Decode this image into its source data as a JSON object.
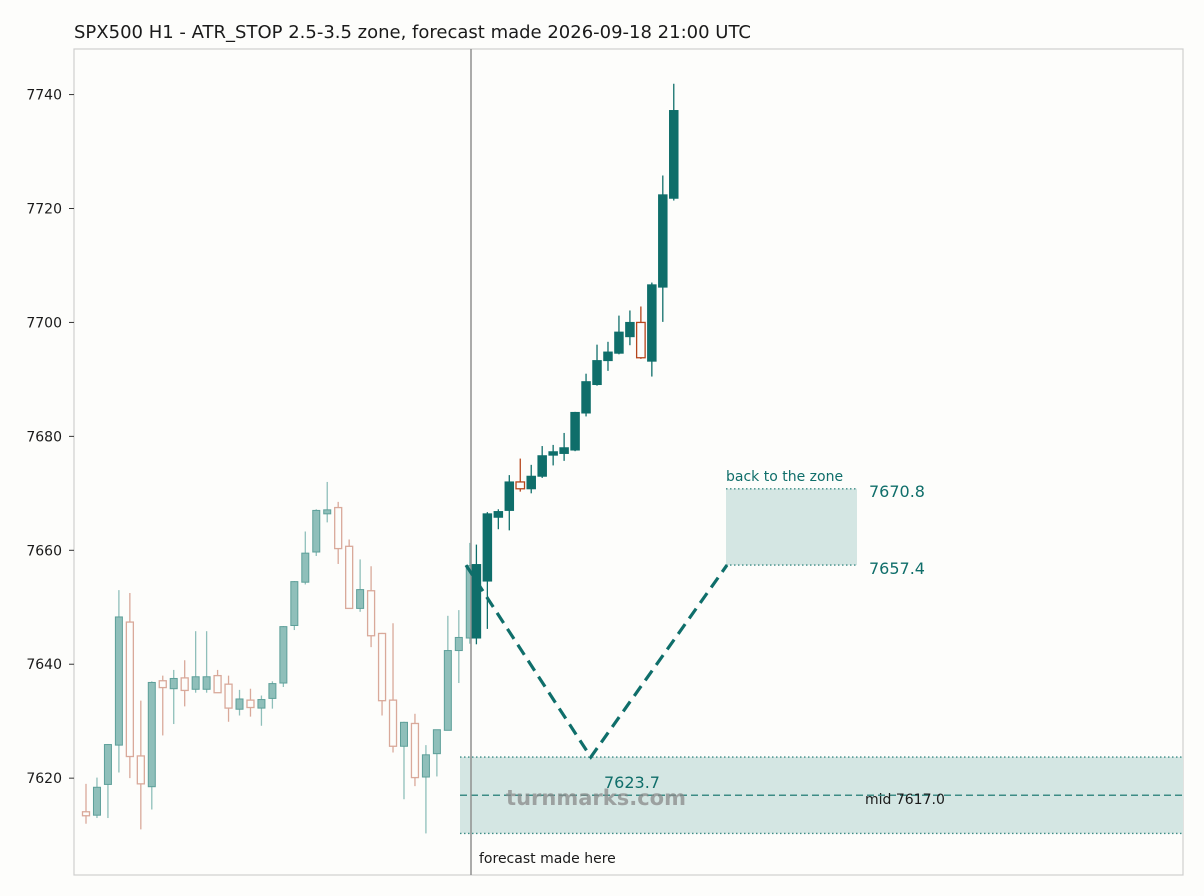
{
  "chart_data": {
    "type": "candlestick",
    "title": "SPX500 H1 - ATR_STOP 2.5-3.5 zone, forecast made 2026-09-18 21:00 UTC",
    "watermark": "turnmarks.com",
    "ylim": [
      7603.0,
      7748.0
    ],
    "yticks": [
      7620,
      7640,
      7660,
      7680,
      7700,
      7720,
      7740
    ],
    "grid": false,
    "colors": {
      "bull": "#0f6e6a",
      "bear": "#b5451b",
      "history_bull": "#8fbfba",
      "history_bear": "#d9a99a",
      "zone_fill": "#d4e6e3",
      "path": "#0f6e6a"
    },
    "history_candles": [
      [
        7614.1,
        7619.0,
        7612.0,
        7613.4
      ],
      [
        7613.5,
        7620.1,
        7613.0,
        7618.4
      ],
      [
        7618.9,
        7626.0,
        7613.0,
        7625.9
      ],
      [
        7625.8,
        7653.0,
        7621.0,
        7648.3
      ],
      [
        7647.4,
        7652.5,
        7620.0,
        7623.8
      ],
      [
        7623.9,
        7633.6,
        7611.0,
        7619.0
      ],
      [
        7618.5,
        7637.0,
        7614.5,
        7636.8
      ],
      [
        7637.1,
        7638.0,
        7627.5,
        7635.9
      ],
      [
        7635.7,
        7639.0,
        7629.5,
        7637.5
      ],
      [
        7637.6,
        7640.7,
        7632.6,
        7635.4
      ],
      [
        7635.6,
        7645.8,
        7635.0,
        7637.8
      ],
      [
        7635.6,
        7645.8,
        7635.0,
        7637.8
      ],
      [
        7638.0,
        7639.0,
        7635.0,
        7635.0
      ],
      [
        7636.5,
        7638.0,
        7629.9,
        7632.3
      ],
      [
        7632.1,
        7635.5,
        7631.0,
        7633.9
      ],
      [
        7633.7,
        7635.7,
        7630.8,
        7632.4
      ],
      [
        7632.3,
        7634.5,
        7629.2,
        7633.8
      ],
      [
        7634.0,
        7637.0,
        7632.2,
        7636.6
      ],
      [
        7636.7,
        7646.7,
        7636.0,
        7646.6
      ],
      [
        7646.8,
        7654.6,
        7646.0,
        7654.5
      ],
      [
        7654.4,
        7663.3,
        7654.0,
        7659.5
      ],
      [
        7659.7,
        7667.2,
        7659.0,
        7667.0
      ],
      [
        7666.4,
        7672.0,
        7664.9,
        7667.1
      ],
      [
        7667.5,
        7668.5,
        7657.6,
        7660.3
      ],
      [
        7660.7,
        7661.9,
        7649.8,
        7649.8
      ],
      [
        7649.8,
        7658.4,
        7649.2,
        7653.1
      ],
      [
        7652.9,
        7657.2,
        7643.0,
        7645.0
      ],
      [
        7645.4,
        7645.5,
        7631.0,
        7633.6
      ],
      [
        7633.7,
        7647.2,
        7624.5,
        7625.6
      ],
      [
        7625.6,
        7629.9,
        7616.3,
        7629.8
      ],
      [
        7629.6,
        7631.3,
        7618.6,
        7620.1
      ],
      [
        7620.2,
        7625.8,
        7610.3,
        7624.1
      ],
      [
        7624.3,
        7628.5,
        7620.3,
        7628.5
      ],
      [
        7628.4,
        7648.5,
        7628.4,
        7642.4
      ],
      [
        7642.4,
        7649.5,
        7636.7,
        7644.7
      ],
      [
        7644.6,
        7661.3,
        7643.6,
        7657.3
      ]
    ],
    "forecast_candles": [
      [
        7644.6,
        7661.0,
        7643.5,
        7657.5
      ],
      [
        7654.6,
        7666.7,
        7646.2,
        7666.4
      ],
      [
        7665.8,
        7667.2,
        7663.7,
        7666.8
      ],
      [
        7667.0,
        7673.2,
        7663.5,
        7672.0
      ],
      [
        7672.0,
        7676.1,
        7670.3,
        7670.8
      ],
      [
        7670.8,
        7675.0,
        7670.0,
        7673.0
      ],
      [
        7673.0,
        7678.3,
        7672.7,
        7676.6
      ],
      [
        7676.7,
        7678.5,
        7674.9,
        7677.3
      ],
      [
        7677.0,
        7680.6,
        7675.7,
        7678.0
      ],
      [
        7677.6,
        7684.3,
        7677.4,
        7684.2
      ],
      [
        7684.1,
        7691.0,
        7683.5,
        7689.6
      ],
      [
        7689.1,
        7696.1,
        7688.9,
        7693.3
      ],
      [
        7693.3,
        7696.6,
        7691.5,
        7694.8
      ],
      [
        7694.6,
        7701.2,
        7694.4,
        7698.3
      ],
      [
        7697.5,
        7702.1,
        7696.0,
        7700.0
      ],
      [
        7700.0,
        7702.8,
        7693.6,
        7693.8
      ],
      [
        7693.2,
        7707.0,
        7690.5,
        7706.6
      ],
      [
        7706.2,
        7725.8,
        7700.1,
        7722.4
      ],
      [
        7721.8,
        7741.9,
        7721.4,
        7737.2
      ]
    ],
    "forecast_marker_label": "forecast made here",
    "path": [
      [
        0,
        7657.4
      ],
      [
        11,
        7623.7
      ],
      [
        23,
        7657.4
      ]
    ],
    "low_label": "7623.7",
    "entry_zone": {
      "top": 7623.7,
      "bottom": 7610.3,
      "mid_label": "mid 7617.0",
      "mid": 7617.0
    },
    "target_zone": {
      "top": 7670.8,
      "bottom": 7657.4,
      "label": "back to the zone",
      "top_label": "7670.8",
      "bottom_label": "7657.4"
    }
  }
}
